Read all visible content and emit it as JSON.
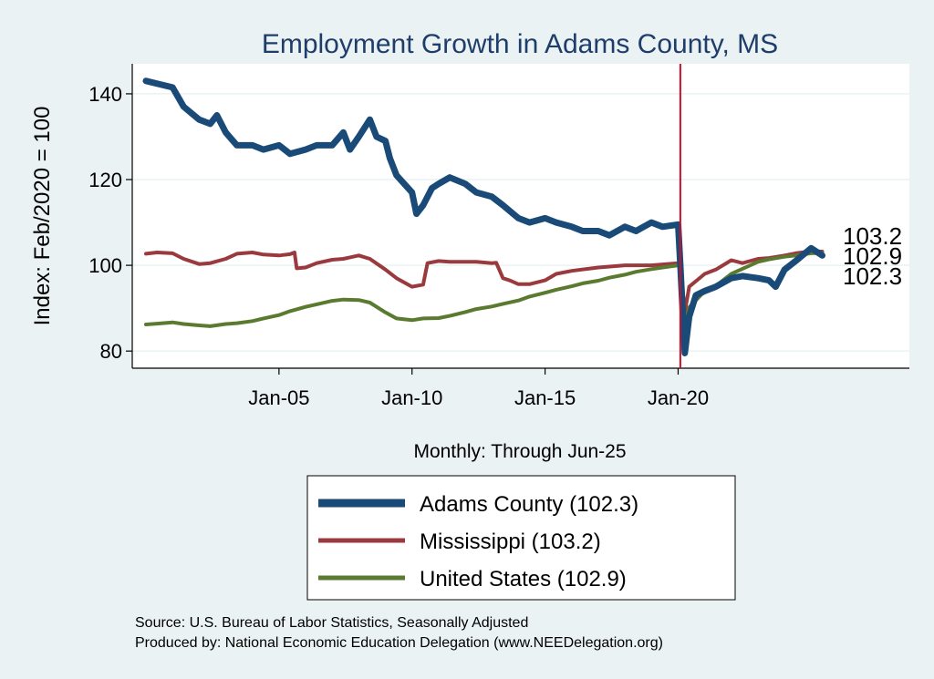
{
  "chart_data": {
    "type": "line",
    "title": "Employment Growth in Adams  County, MS",
    "ylabel": "Index: Feb/2020 = 100",
    "xlabel": "Monthly: Through Jun-25",
    "x_ticks": [
      "Jan-05",
      "Jan-10",
      "Jan-15",
      "Jan-20"
    ],
    "y_ticks": [
      80,
      100,
      120,
      140
    ],
    "ylim": [
      76,
      147
    ],
    "x_range": [
      "Jan-00",
      "Jun-28"
    ],
    "vline": "Feb-20",
    "vline_color": "#c8102e",
    "grid": true,
    "legend_position": "bottom",
    "end_labels": [
      "103.2",
      "102.9",
      "102.3"
    ],
    "series": [
      {
        "name": "Adams  County (102.3)",
        "color": "#1a4a78",
        "points": [
          [
            "Jan-00",
            143
          ],
          [
            "Jan-01",
            141.5
          ],
          [
            "Jun-01",
            137
          ],
          [
            "Jan-02",
            134
          ],
          [
            "Jun-02",
            133
          ],
          [
            "Sep-02",
            135
          ],
          [
            "Jan-03",
            131
          ],
          [
            "Jun-03",
            128
          ],
          [
            "Jan-04",
            128
          ],
          [
            "Jun-04",
            127
          ],
          [
            "Jan-05",
            128
          ],
          [
            "Jun-05",
            126
          ],
          [
            "Jan-06",
            127
          ],
          [
            "Jun-06",
            128
          ],
          [
            "Jan-07",
            128
          ],
          [
            "Jun-07",
            131
          ],
          [
            "Sep-07",
            127
          ],
          [
            "Jan-08",
            130
          ],
          [
            "Jun-08",
            134
          ],
          [
            "Sep-08",
            130
          ],
          [
            "Jan-09",
            129
          ],
          [
            "Mar-09",
            125
          ],
          [
            "Jun-09",
            121
          ],
          [
            "Jan-10",
            117
          ],
          [
            "Mar-10",
            112
          ],
          [
            "Jun-10",
            114
          ],
          [
            "Oct-10",
            118
          ],
          [
            "Jan-11",
            119
          ],
          [
            "Jun-11",
            120.5
          ],
          [
            "Jan-12",
            119
          ],
          [
            "Jun-12",
            117
          ],
          [
            "Jan-13",
            116
          ],
          [
            "Jun-13",
            114
          ],
          [
            "Jan-14",
            111
          ],
          [
            "Jun-14",
            110
          ],
          [
            "Jan-15",
            111
          ],
          [
            "Jun-15",
            110
          ],
          [
            "Jan-16",
            109
          ],
          [
            "Jun-16",
            108
          ],
          [
            "Jan-17",
            108
          ],
          [
            "Jun-17",
            107
          ],
          [
            "Jan-18",
            109
          ],
          [
            "Jun-18",
            108
          ],
          [
            "Jan-19",
            110
          ],
          [
            "Jun-19",
            109
          ],
          [
            "Jan-20",
            109.5
          ],
          [
            "Feb-20",
            100
          ],
          [
            "Apr-20",
            79.5
          ],
          [
            "Jun-20",
            88
          ],
          [
            "Sep-20",
            93
          ],
          [
            "Jan-21",
            94
          ],
          [
            "Jun-21",
            95
          ],
          [
            "Jan-22",
            97
          ],
          [
            "Jun-22",
            97.5
          ],
          [
            "Jan-23",
            97
          ],
          [
            "Jun-23",
            96.5
          ],
          [
            "Sep-23",
            95
          ],
          [
            "Jan-24",
            99
          ],
          [
            "Jun-24",
            101
          ],
          [
            "Jan-25",
            104
          ],
          [
            "Jun-25",
            102.3
          ]
        ]
      },
      {
        "name": "Mississippi (103.2)",
        "color": "#9b3a3e",
        "points": [
          [
            "Jan-00",
            102.7
          ],
          [
            "Jun-00",
            103
          ],
          [
            "Jan-01",
            102.8
          ],
          [
            "Jun-01",
            101.5
          ],
          [
            "Jan-02",
            100.3
          ],
          [
            "Jun-02",
            100.5
          ],
          [
            "Jan-03",
            101.5
          ],
          [
            "Jun-03",
            102.7
          ],
          [
            "Jan-04",
            103
          ],
          [
            "Jun-04",
            102.5
          ],
          [
            "Jan-05",
            102.3
          ],
          [
            "Jun-05",
            102.6
          ],
          [
            "Aug-05",
            103
          ],
          [
            "Sep-05",
            99.3
          ],
          [
            "Jan-06",
            99.5
          ],
          [
            "Jun-06",
            100.5
          ],
          [
            "Jan-07",
            101.3
          ],
          [
            "Jun-07",
            101.5
          ],
          [
            "Jan-08",
            102.3
          ],
          [
            "Jun-08",
            101.5
          ],
          [
            "Jan-09",
            99
          ],
          [
            "Jun-09",
            97
          ],
          [
            "Jan-10",
            95
          ],
          [
            "Jun-10",
            95.5
          ],
          [
            "Aug-10",
            100.5
          ],
          [
            "Jan-11",
            101
          ],
          [
            "Jun-11",
            100.8
          ],
          [
            "Jan-12",
            100.8
          ],
          [
            "Jun-12",
            100.8
          ],
          [
            "Jan-13",
            100.5
          ],
          [
            "Mar-13",
            100.6
          ],
          [
            "Jun-13",
            97
          ],
          [
            "Sep-13",
            96.5
          ],
          [
            "Jan-14",
            95.6
          ],
          [
            "Jun-14",
            95.6
          ],
          [
            "Jan-15",
            96.5
          ],
          [
            "Jun-15",
            98
          ],
          [
            "Jan-16",
            98.7
          ],
          [
            "Jan-17",
            99.5
          ],
          [
            "Jan-18",
            100
          ],
          [
            "Jan-19",
            100
          ],
          [
            "Jan-20",
            100.5
          ],
          [
            "Feb-20",
            100
          ],
          [
            "Apr-20",
            89
          ],
          [
            "Jun-20",
            95
          ],
          [
            "Jan-21",
            98
          ],
          [
            "Jun-21",
            99
          ],
          [
            "Jan-22",
            101.2
          ],
          [
            "Jun-22",
            100.5
          ],
          [
            "Jan-23",
            101.5
          ],
          [
            "Jun-23",
            101.7
          ],
          [
            "Jan-24",
            102.3
          ],
          [
            "Jun-24",
            102.8
          ],
          [
            "Jan-25",
            103.3
          ],
          [
            "Jun-25",
            103.2
          ]
        ]
      },
      {
        "name": "United States (102.9)",
        "color": "#5a7a2f",
        "points": [
          [
            "Jan-00",
            86.2
          ],
          [
            "Jun-00",
            86.4
          ],
          [
            "Jan-01",
            86.7
          ],
          [
            "Jun-01",
            86.3
          ],
          [
            "Jan-02",
            86
          ],
          [
            "Jun-02",
            85.8
          ],
          [
            "Jan-03",
            86.3
          ],
          [
            "Jun-03",
            86.5
          ],
          [
            "Jan-04",
            87
          ],
          [
            "Jun-04",
            87.6
          ],
          [
            "Jan-05",
            88.4
          ],
          [
            "Jun-05",
            89.3
          ],
          [
            "Jan-06",
            90.3
          ],
          [
            "Jun-06",
            90.9
          ],
          [
            "Jan-07",
            91.7
          ],
          [
            "Jun-07",
            92
          ],
          [
            "Jan-08",
            91.9
          ],
          [
            "Jun-08",
            91.3
          ],
          [
            "Jan-09",
            89
          ],
          [
            "Jun-09",
            87.6
          ],
          [
            "Jan-10",
            87.2
          ],
          [
            "Jun-10",
            87.6
          ],
          [
            "Jan-11",
            87.7
          ],
          [
            "Jun-11",
            88.2
          ],
          [
            "Jan-12",
            89.1
          ],
          [
            "Jun-12",
            89.8
          ],
          [
            "Jan-13",
            90.4
          ],
          [
            "Jun-13",
            91
          ],
          [
            "Jan-14",
            91.8
          ],
          [
            "Jun-14",
            92.7
          ],
          [
            "Jan-15",
            93.6
          ],
          [
            "Jun-15",
            94.3
          ],
          [
            "Jan-16",
            95.1
          ],
          [
            "Jun-16",
            95.8
          ],
          [
            "Jan-17",
            96.4
          ],
          [
            "Jun-17",
            97.1
          ],
          [
            "Jan-18",
            97.8
          ],
          [
            "Jun-18",
            98.5
          ],
          [
            "Jan-19",
            99.1
          ],
          [
            "Jun-19",
            99.5
          ],
          [
            "Jan-20",
            100
          ],
          [
            "Feb-20",
            100
          ],
          [
            "Apr-20",
            85.5
          ],
          [
            "Jun-20",
            90.2
          ],
          [
            "Jan-21",
            94
          ],
          [
            "Jun-21",
            95.2
          ],
          [
            "Jan-22",
            98
          ],
          [
            "Jun-22",
            99.2
          ],
          [
            "Jan-23",
            100.8
          ],
          [
            "Jun-23",
            101.4
          ],
          [
            "Jan-24",
            102
          ],
          [
            "Jun-24",
            102.3
          ],
          [
            "Jan-25",
            102.8
          ],
          [
            "Jun-25",
            102.9
          ]
        ]
      }
    ]
  },
  "source_line": "Source: U.S. Bureau of Labor Statistics, Seasonally Adjusted",
  "produced_line": "Produced by: National Economic Education Delegation (www.NEEDelegation.org)"
}
